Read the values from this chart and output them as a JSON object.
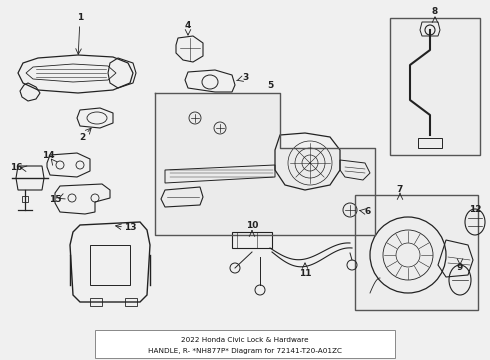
{
  "bg_color": "#f0f0f0",
  "line_color": "#222222",
  "border_color": "#555555",
  "title_line1": "2022 Honda Civic Lock & Hardware",
  "title_line2": "HANDLE, R- *NH877P* Diagram for 72141-T20-A01ZC",
  "figsize": [
    4.9,
    3.6
  ],
  "dpi": 100
}
